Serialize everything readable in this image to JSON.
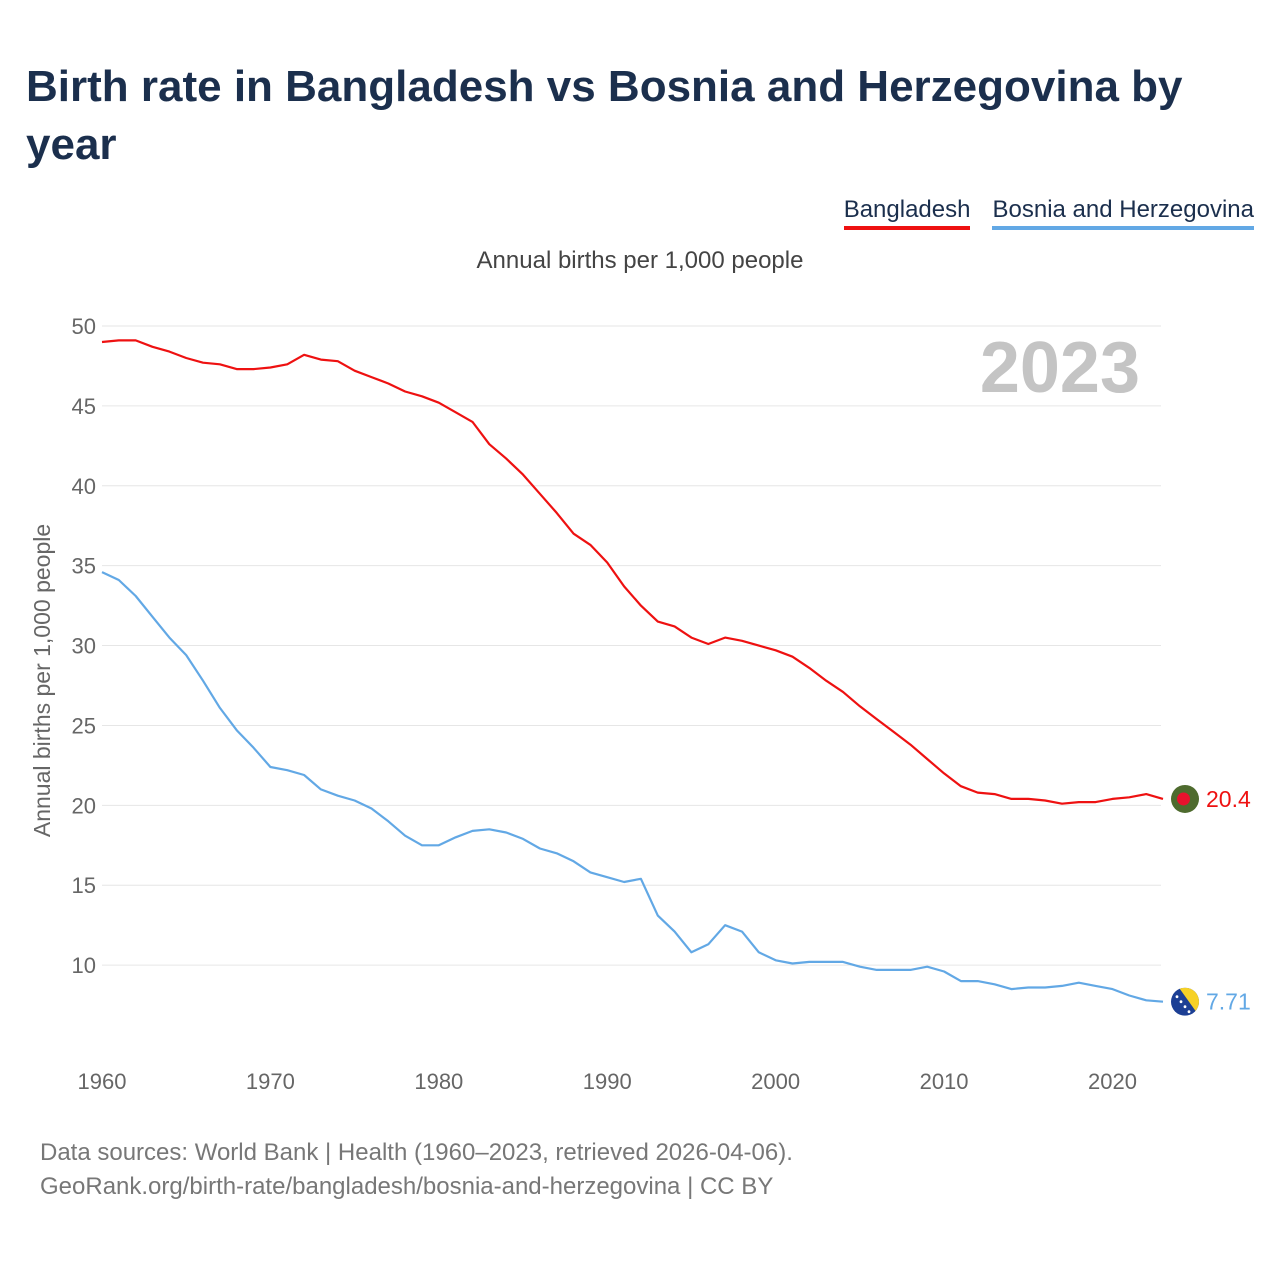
{
  "title": "Birth rate in Bangladesh vs Bosnia and Herzegovina by year",
  "legend": {
    "bangladesh": "Bangladesh",
    "bosnia": "Bosnia and Herzegovina"
  },
  "footer": {
    "line1": "Data sources: World Bank | Health (1960–2023, retrieved 2026-04-06).",
    "line2": "GeoRank.org/birth-rate/bangladesh/bosnia-and-herzegovina | CC BY"
  },
  "colors": {
    "bangladesh": "#ee1111",
    "bosnia": "#62a8e5",
    "grid": "#e6e6e6",
    "axis_text": "#666666",
    "year_watermark": "#c4c4c4"
  },
  "chart_data": {
    "type": "line",
    "title": "Birth rate in Bangladesh vs Bosnia and Herzegovina by year",
    "subtitle": "Annual births per 1,000 people",
    "xlabel": "",
    "ylabel": "Annual births per 1,000 people",
    "year_label": "2023",
    "xlim": [
      1960,
      2023
    ],
    "ylim": [
      5,
      50
    ],
    "x_ticks": [
      1960,
      1970,
      1980,
      1990,
      2000,
      2010,
      2020
    ],
    "y_ticks": [
      10,
      15,
      20,
      25,
      30,
      35,
      40,
      45,
      50
    ],
    "x": [
      1960,
      1961,
      1962,
      1963,
      1964,
      1965,
      1966,
      1967,
      1968,
      1969,
      1970,
      1971,
      1972,
      1973,
      1974,
      1975,
      1976,
      1977,
      1978,
      1979,
      1980,
      1981,
      1982,
      1983,
      1984,
      1985,
      1986,
      1987,
      1988,
      1989,
      1990,
      1991,
      1992,
      1993,
      1994,
      1995,
      1996,
      1997,
      1998,
      1999,
      2000,
      2001,
      2002,
      2003,
      2004,
      2005,
      2006,
      2007,
      2008,
      2009,
      2010,
      2011,
      2012,
      2013,
      2014,
      2015,
      2016,
      2017,
      2018,
      2019,
      2020,
      2021,
      2022,
      2023
    ],
    "series": [
      {
        "name": "Bangladesh",
        "end_label": "20.4",
        "values": [
          49.0,
          49.1,
          49.1,
          48.7,
          48.4,
          48.0,
          47.7,
          47.6,
          47.3,
          47.3,
          47.4,
          47.6,
          48.2,
          47.9,
          47.8,
          47.2,
          46.8,
          46.4,
          45.9,
          45.6,
          45.2,
          44.6,
          44.0,
          42.6,
          41.7,
          40.7,
          39.5,
          38.3,
          37.0,
          36.3,
          35.2,
          33.7,
          32.5,
          31.5,
          31.2,
          30.5,
          30.1,
          30.5,
          30.3,
          30.0,
          29.7,
          29.3,
          28.6,
          27.8,
          27.1,
          26.2,
          25.4,
          24.6,
          23.8,
          22.9,
          22.0,
          21.2,
          20.8,
          20.7,
          20.4,
          20.4,
          20.3,
          20.1,
          20.2,
          20.2,
          20.4,
          20.5,
          20.7,
          20.4
        ]
      },
      {
        "name": "Bosnia and Herzegovina",
        "end_label": "7.71",
        "values": [
          34.6,
          34.1,
          33.1,
          31.8,
          30.5,
          29.4,
          27.8,
          26.1,
          24.7,
          23.6,
          22.4,
          22.2,
          21.9,
          21.0,
          20.6,
          20.3,
          19.8,
          19.0,
          18.1,
          17.5,
          17.5,
          18.0,
          18.4,
          18.5,
          18.3,
          17.9,
          17.3,
          17.0,
          16.5,
          15.8,
          15.5,
          15.2,
          15.4,
          13.1,
          12.1,
          10.8,
          11.3,
          12.5,
          12.1,
          10.8,
          10.3,
          10.1,
          10.2,
          10.2,
          10.2,
          9.9,
          9.7,
          9.7,
          9.7,
          9.9,
          9.6,
          9.0,
          9.0,
          8.8,
          8.5,
          8.6,
          8.6,
          8.7,
          8.9,
          8.7,
          8.5,
          8.1,
          7.8,
          7.71
        ]
      }
    ]
  }
}
